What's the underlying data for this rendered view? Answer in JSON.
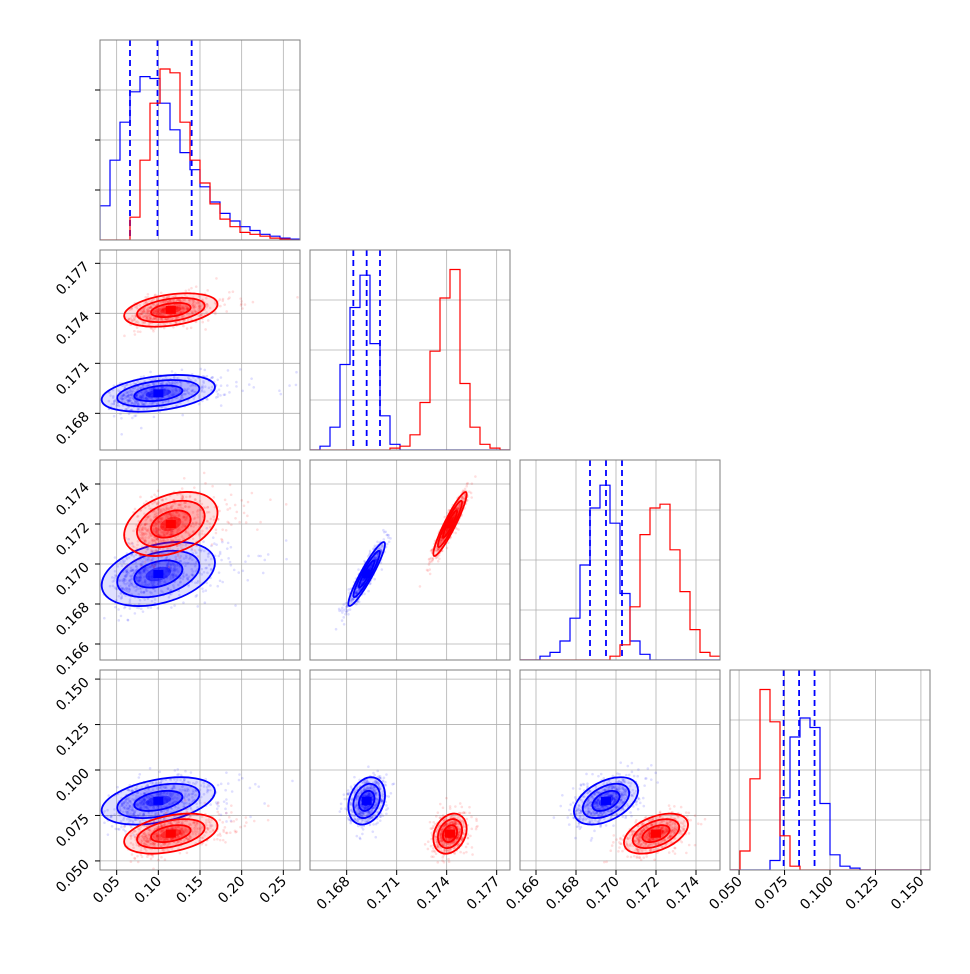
{
  "colors": {
    "blue": "#0000ff",
    "red": "#ff0000",
    "grid": "#b0b0b0",
    "frame": "#7f7f7f"
  },
  "chart_data": {
    "type": "corner",
    "grid": true,
    "legend": "none",
    "params": [
      {
        "range": [
          0.03,
          0.27
        ],
        "ticks": [
          "0.05",
          "0.10",
          "0.15",
          "0.20",
          "0.25"
        ],
        "tick_values": [
          0.05,
          0.1,
          0.15,
          0.2,
          0.25
        ]
      },
      {
        "range": [
          0.1658,
          0.1778
        ],
        "ticks": [
          "0.168",
          "0.171",
          "0.174",
          "0.177"
        ],
        "tick_values": [
          0.168,
          0.171,
          0.174,
          0.177
        ]
      },
      {
        "range": [
          0.1652,
          0.1752
        ],
        "ticks": [
          "0.166",
          "0.168",
          "0.170",
          "0.172",
          "0.174"
        ],
        "tick_values": [
          0.166,
          0.168,
          0.17,
          0.172,
          0.174
        ]
      },
      {
        "range": [
          0.045,
          0.155
        ],
        "ticks": [
          "0.050",
          "0.075",
          "0.100",
          "0.125",
          "0.150"
        ],
        "tick_values": [
          0.05,
          0.075,
          0.1,
          0.125,
          0.15
        ]
      }
    ],
    "series": [
      {
        "color": "blue",
        "mean": [
          0.1,
          0.1692,
          0.1695,
          0.083
        ],
        "sd": [
          0.034,
          0.00055,
          0.0008,
          0.0065
        ],
        "quantiles": [
          [
            0.066,
            0.099,
            0.14
          ],
          [
            0.1684,
            0.1692,
            0.17
          ],
          [
            0.1687,
            0.1695,
            0.1703
          ],
          [
            0.0745,
            0.083,
            0.0915
          ]
        ],
        "histograms": [
          {
            "edges": [
              0.03,
              0.042,
              0.054,
              0.066,
              0.078,
              0.09,
              0.102,
              0.114,
              0.126,
              0.138,
              0.15,
              0.162,
              0.174,
              0.186,
              0.198,
              0.21,
              0.222,
              0.234,
              0.246,
              0.258,
              0.27
            ],
            "counts": [
              0.18,
              0.42,
              0.62,
              0.78,
              0.86,
              0.85,
              0.72,
              0.58,
              0.46,
              0.37,
              0.28,
              0.2,
              0.14,
              0.1,
              0.07,
              0.05,
              0.03,
              0.02,
              0.01,
              0.005
            ]
          },
          {
            "edges": [
              0.1658,
              0.1664,
              0.167,
              0.1676,
              0.1682,
              0.1688,
              0.1694,
              0.17,
              0.1706,
              0.1712,
              0.1718,
              0.1724,
              0.173,
              0.1736,
              0.1742,
              0.1748,
              0.1754,
              0.176,
              0.1766,
              0.1772,
              0.1778
            ],
            "counts": [
              0.0,
              0.02,
              0.12,
              0.45,
              0.75,
              0.92,
              0.56,
              0.18,
              0.03,
              0.0,
              0.0,
              0.0,
              0.0,
              0.0,
              0.0,
              0.0,
              0.0,
              0.0,
              0.0,
              0.0
            ]
          },
          {
            "edges": [
              0.1652,
              0.1657,
              0.1662,
              0.1667,
              0.1672,
              0.1677,
              0.1682,
              0.1687,
              0.1692,
              0.1697,
              0.1702,
              0.1707,
              0.1712,
              0.1717,
              0.1722,
              0.1727,
              0.1732,
              0.1737,
              0.1742,
              0.1747,
              0.1752
            ],
            "counts": [
              0.0,
              0.0,
              0.02,
              0.04,
              0.1,
              0.22,
              0.5,
              0.8,
              0.92,
              0.72,
              0.35,
              0.1,
              0.03,
              0.0,
              0.0,
              0.0,
              0.0,
              0.0,
              0.0,
              0.0
            ]
          },
          {
            "edges": [
              0.045,
              0.0505,
              0.056,
              0.0615,
              0.067,
              0.0725,
              0.078,
              0.0835,
              0.089,
              0.0945,
              0.1,
              0.1055,
              0.111,
              0.1165,
              0.122,
              0.1275,
              0.133,
              0.1385,
              0.144,
              0.1495,
              0.155
            ],
            "counts": [
              0.0,
              0.0,
              0.0,
              0.0,
              0.05,
              0.38,
              0.7,
              0.8,
              0.75,
              0.35,
              0.08,
              0.02,
              0.01,
              0.0,
              0.0,
              0.0,
              0.0,
              0.0,
              0.0,
              0.0
            ]
          }
        ]
      },
      {
        "color": "red",
        "mean": [
          0.115,
          0.1742,
          0.172,
          0.065
        ],
        "sd": [
          0.028,
          0.0005,
          0.0008,
          0.0055
        ],
        "histograms": [
          {
            "edges": [
              0.03,
              0.042,
              0.054,
              0.066,
              0.078,
              0.09,
              0.102,
              0.114,
              0.126,
              0.138,
              0.15,
              0.162,
              0.174,
              0.186,
              0.198,
              0.21,
              0.222,
              0.234,
              0.246,
              0.258,
              0.27
            ],
            "counts": [
              0.0,
              0.0,
              0.0,
              0.12,
              0.42,
              0.72,
              0.9,
              0.88,
              0.62,
              0.42,
              0.3,
              0.19,
              0.11,
              0.07,
              0.04,
              0.03,
              0.02,
              0.01,
              0.005,
              0.0
            ]
          },
          {
            "edges": [
              0.1658,
              0.1664,
              0.167,
              0.1676,
              0.1682,
              0.1688,
              0.1694,
              0.17,
              0.1706,
              0.1712,
              0.1718,
              0.1724,
              0.173,
              0.1736,
              0.1742,
              0.1748,
              0.1754,
              0.176,
              0.1766,
              0.1772,
              0.1778
            ],
            "counts": [
              0.0,
              0.0,
              0.0,
              0.0,
              0.0,
              0.0,
              0.0,
              0.0,
              0.01,
              0.02,
              0.08,
              0.25,
              0.52,
              0.8,
              0.95,
              0.35,
              0.12,
              0.03,
              0.01,
              0.0
            ]
          },
          {
            "edges": [
              0.1652,
              0.1657,
              0.1662,
              0.1667,
              0.1672,
              0.1677,
              0.1682,
              0.1687,
              0.1692,
              0.1697,
              0.1702,
              0.1707,
              0.1712,
              0.1717,
              0.1722,
              0.1727,
              0.1732,
              0.1737,
              0.1742,
              0.1747,
              0.1752
            ],
            "counts": [
              0.0,
              0.0,
              0.0,
              0.0,
              0.0,
              0.0,
              0.0,
              0.0,
              0.0,
              0.02,
              0.08,
              0.28,
              0.66,
              0.8,
              0.82,
              0.58,
              0.36,
              0.16,
              0.04,
              0.02
            ]
          },
          {
            "edges": [
              0.045,
              0.0505,
              0.056,
              0.0615,
              0.067,
              0.0725,
              0.078,
              0.0835,
              0.089,
              0.0945,
              0.1,
              0.1055,
              0.111,
              0.1165,
              0.122,
              0.1275,
              0.133,
              0.1385,
              0.144,
              0.1495,
              0.155
            ],
            "counts": [
              0.0,
              0.1,
              0.48,
              0.95,
              0.78,
              0.18,
              0.02,
              0.0,
              0.0,
              0.0,
              0.0,
              0.0,
              0.0,
              0.0,
              0.0,
              0.0,
              0.0,
              0.0,
              0.0,
              0.0
            ]
          }
        ]
      }
    ],
    "correlations": {
      "0_1": 0.35,
      "0_2": 0.35,
      "0_3": 0.4,
      "1_2": 0.93,
      "1_3": 0.25,
      "2_3": 0.45
    }
  }
}
